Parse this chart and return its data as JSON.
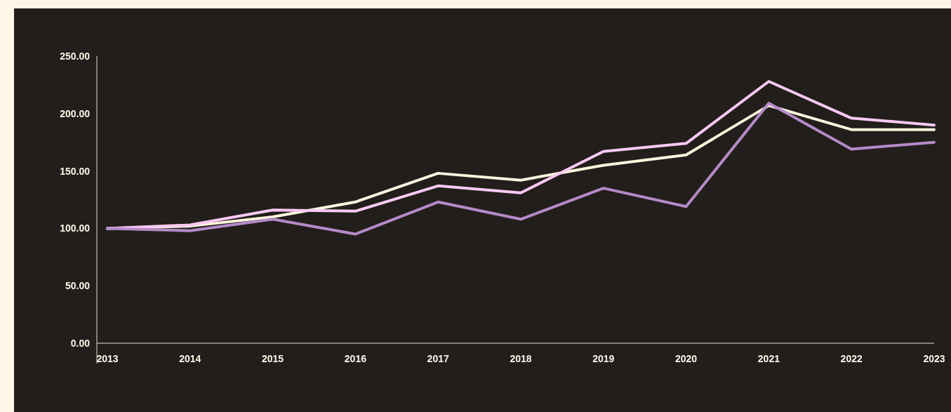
{
  "chart_data": {
    "type": "line",
    "categories": [
      "2013",
      "2014",
      "2015",
      "2016",
      "2017",
      "2018",
      "2019",
      "2020",
      "2021",
      "2022",
      "2023"
    ],
    "series": [
      {
        "color": "#fcf5dc",
        "values": [
          100,
          102,
          110,
          123,
          148,
          142,
          155,
          164,
          207,
          186,
          186
        ]
      },
      {
        "color": "#f9c9f3",
        "values": [
          100,
          103,
          116,
          115,
          137,
          131,
          167,
          174,
          228,
          196,
          190
        ]
      },
      {
        "color": "#b48ac8",
        "values": [
          100,
          98,
          108,
          95,
          123,
          108,
          135,
          119,
          209,
          169,
          175
        ]
      }
    ],
    "ylim": [
      0,
      250
    ],
    "yticks": [
      {
        "value": 0,
        "label": "0.00"
      },
      {
        "value": 50,
        "label": "50.00"
      },
      {
        "value": 100,
        "label": "100.00"
      },
      {
        "value": 150,
        "label": "150.00"
      },
      {
        "value": 200,
        "label": "200.00"
      },
      {
        "value": 250,
        "label": "250.00"
      }
    ],
    "grid": false,
    "marker": "none",
    "line_style": "solid"
  }
}
